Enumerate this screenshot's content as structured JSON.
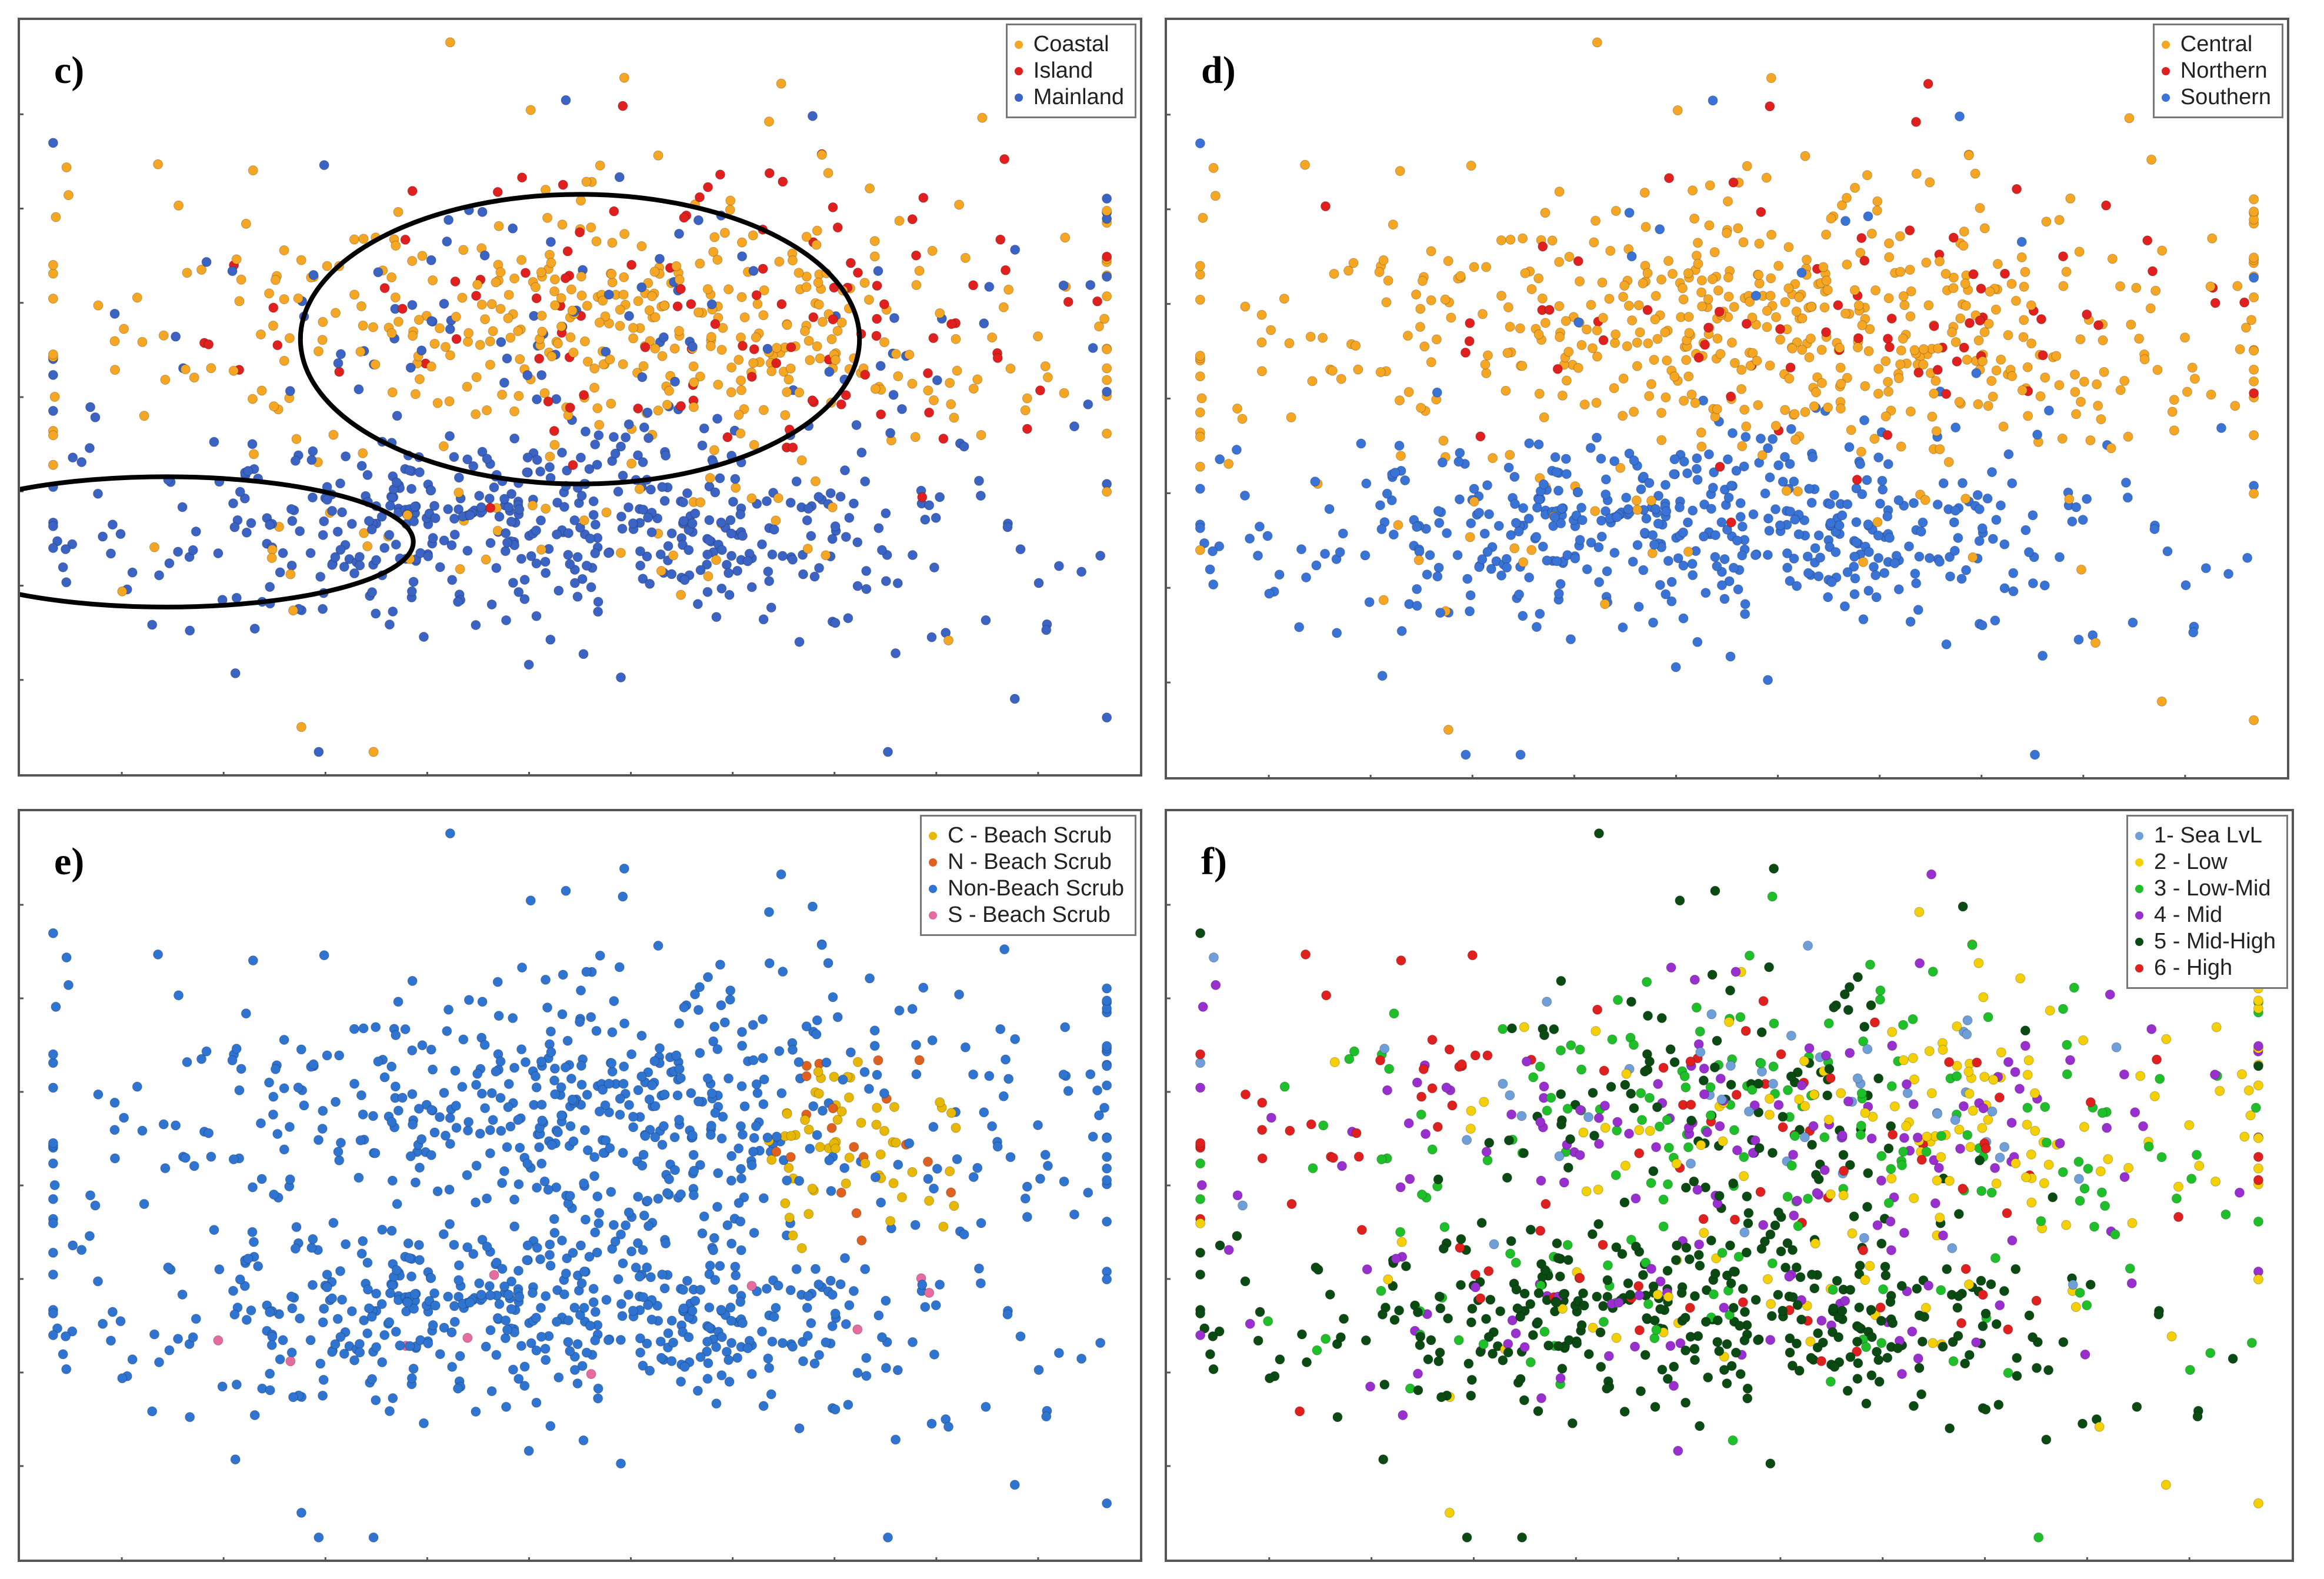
{
  "chart_data": [
    {
      "id": "c",
      "type": "scatter",
      "label": "c)",
      "title": "",
      "xlabel": "",
      "ylabel": "",
      "xlim": [
        -1,
        1
      ],
      "ylim": [
        -1,
        1
      ],
      "legend": "top-right",
      "series": [
        {
          "name": "Coastal",
          "color": "#F5A623"
        },
        {
          "name": "Island",
          "color": "#E0201F"
        },
        {
          "name": "Mainland",
          "color": "#3A63C4"
        }
      ],
      "annotations": [
        {
          "type": "ellipse",
          "cx": 0.115,
          "cy": 0.7,
          "rx": 0.23,
          "ry": 0.09
        },
        {
          "type": "ellipse",
          "cx": 0.5,
          "cy": 0.42,
          "rx": 0.26,
          "ry": 0.2
        }
      ]
    },
    {
      "id": "d",
      "type": "scatter",
      "label": "d)",
      "title": "",
      "xlabel": "",
      "ylabel": "",
      "xlim": [
        -1,
        1
      ],
      "ylim": [
        -1,
        1
      ],
      "legend": "top-right",
      "series": [
        {
          "name": "Central",
          "color": "#F5A623"
        },
        {
          "name": "Northern",
          "color": "#E0201F"
        },
        {
          "name": "Southern",
          "color": "#3A73D6"
        }
      ]
    },
    {
      "id": "e",
      "type": "scatter",
      "label": "e)",
      "title": "",
      "xlabel": "",
      "ylabel": "",
      "xlim": [
        -1,
        1
      ],
      "ylim": [
        -1,
        1
      ],
      "legend": "top-right",
      "series": [
        {
          "name": "C - Beach Scrub",
          "color": "#E8B800"
        },
        {
          "name": "N - Beach Scrub",
          "color": "#E0601F"
        },
        {
          "name": "Non-Beach Scrub",
          "color": "#2E74D0"
        },
        {
          "name": "S - Beach Scrub",
          "color": "#E56BA0"
        }
      ]
    },
    {
      "id": "f",
      "type": "scatter",
      "label": "f)",
      "title": "",
      "xlabel": "",
      "ylabel": "",
      "xlim": [
        -1,
        1
      ],
      "ylim": [
        -1,
        1
      ],
      "legend": "top-right",
      "series": [
        {
          "name": "1- Sea LvL",
          "color": "#6E9FD8"
        },
        {
          "name": "2 - Low",
          "color": "#F5D000"
        },
        {
          "name": "3 - Low-Mid",
          "color": "#1FBF2A"
        },
        {
          "name": "4 - Mid",
          "color": "#9A2FD0"
        },
        {
          "name": "5 - Mid-High",
          "color": "#0B4A12"
        },
        {
          "name": "6 - High",
          "color": "#E0201F"
        }
      ]
    }
  ]
}
